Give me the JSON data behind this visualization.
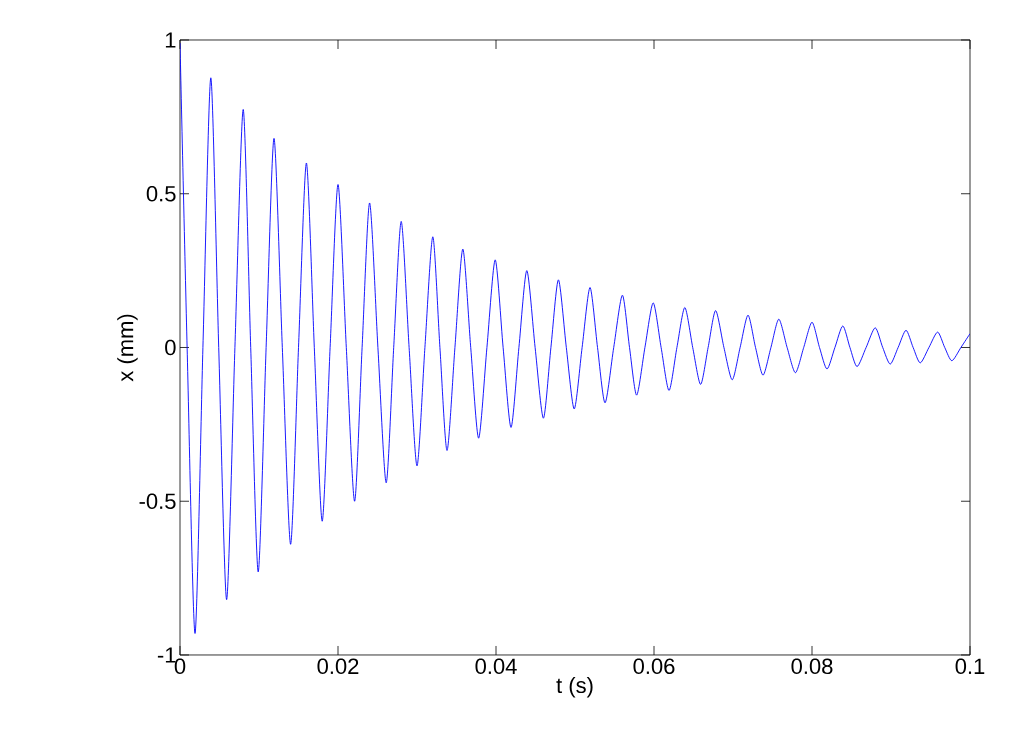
{
  "chart_data": {
    "type": "line",
    "xlabel": "t (s)",
    "ylabel": "x (mm)",
    "xlim": [
      0,
      0.1
    ],
    "ylim": [
      -1,
      1
    ],
    "xticks": [
      0,
      0.02,
      0.04,
      0.06,
      0.08,
      0.1
    ],
    "yticks": [
      -1,
      -0.5,
      0,
      0.5,
      1
    ],
    "series": [
      {
        "color": "#0000ff",
        "x": [
          0,
          0.0009,
          0.0019,
          0.0029,
          0.0039,
          0.0049,
          0.0059,
          0.00695,
          0.008,
          0.00895,
          0.0099,
          0.0109,
          0.0119,
          0.01295,
          0.014,
          0.015,
          0.016,
          0.017,
          0.018,
          0.019,
          0.02,
          0.02105,
          0.0221,
          0.02305,
          0.024,
          0.02505,
          0.0261,
          0.02705,
          0.028,
          0.029,
          0.03,
          0.031,
          0.032,
          0.0329,
          0.0338,
          0.0348,
          0.0358,
          0.0368,
          0.0378,
          0.03885,
          0.0399,
          0.0409,
          0.0419,
          0.0429,
          0.0439,
          0.04495,
          0.046,
          0.04695,
          0.0479,
          0.0489,
          0.0499,
          0.0509,
          0.0519,
          0.05285,
          0.0538,
          0.0549,
          0.056,
          0.0569,
          0.0578,
          0.05885,
          0.0599,
          0.0609,
          0.0619,
          0.0629,
          0.0639,
          0.0649,
          0.0659,
          0.06685,
          0.0678,
          0.06885,
          0.0699,
          0.0709,
          0.0719,
          0.07285,
          0.0738,
          0.0748,
          0.0758,
          0.07685,
          0.0779,
          0.07895,
          0.08,
          0.08095,
          0.0819,
          0.0829,
          0.0839,
          0.0848,
          0.0857,
          0.08685,
          0.088,
          0.08895,
          0.0899,
          0.0909,
          0.0919,
          0.0928,
          0.0937,
          0.0948,
          0.0959,
          0.0968,
          0.0977,
          0.09885,
          0.1
        ],
        "values": [
          0.99,
          0,
          -0.93,
          0,
          0.877,
          0,
          -0.82,
          0,
          0.774,
          0,
          -0.73,
          0,
          0.68,
          0,
          -0.64,
          0,
          0.6,
          0,
          -0.565,
          0,
          0.53,
          0,
          -0.5,
          0,
          0.47,
          0,
          -0.44,
          0,
          0.41,
          0,
          -0.385,
          0,
          0.36,
          0,
          -0.335,
          0,
          0.32,
          0,
          -0.295,
          0,
          0.285,
          0,
          -0.26,
          0,
          0.25,
          0,
          -0.23,
          0,
          0.22,
          0,
          -0.2,
          0,
          0.195,
          0,
          -0.18,
          0,
          0.17,
          0,
          -0.155,
          0,
          0.145,
          0,
          -0.14,
          0,
          0.13,
          0,
          -0.12,
          0,
          0.12,
          0,
          -0.105,
          0,
          0.105,
          0,
          -0.09,
          0,
          0.092,
          0,
          -0.082,
          0,
          0.082,
          0,
          -0.07,
          0,
          0.07,
          0,
          -0.062,
          0,
          0.064,
          0,
          -0.054,
          0,
          0.056,
          0,
          -0.05,
          0,
          0.05,
          0,
          -0.043,
          0,
          0.045
        ]
      }
    ]
  }
}
